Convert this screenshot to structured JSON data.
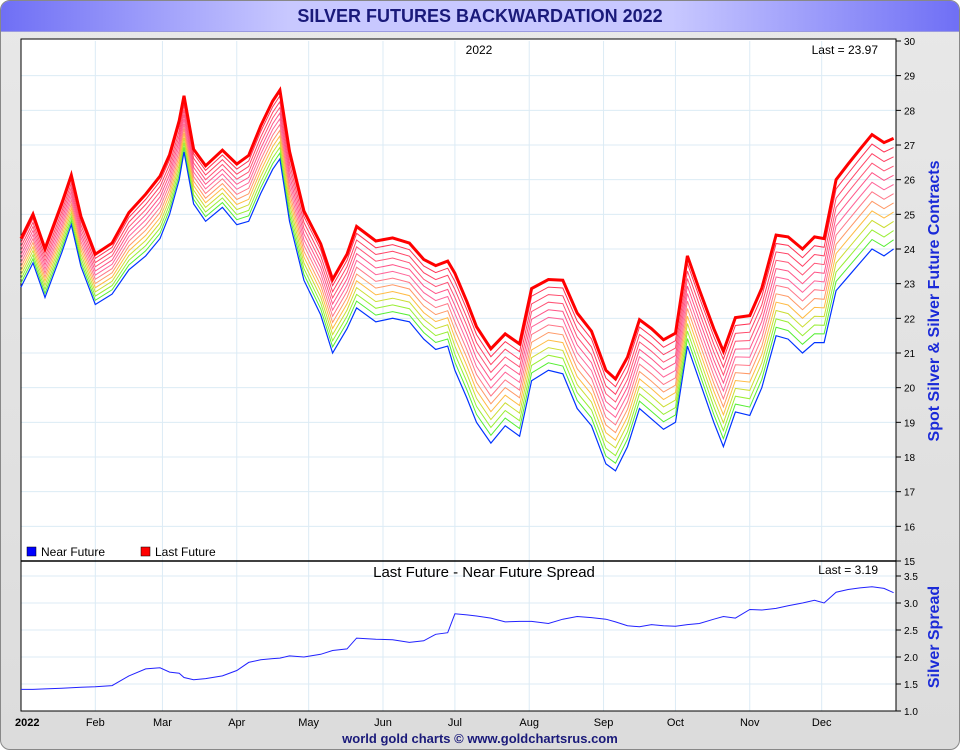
{
  "title": "SILVER FUTURES BACKWARDATION 2022",
  "footer": "world gold charts © www.goldchartsrus.com",
  "chart_data": [
    {
      "type": "line",
      "title": "2022",
      "last_label": "Last = 23.97",
      "ylabel": "Spot Silver & Silver Future Contracts",
      "ylim": [
        15,
        30
      ],
      "yticks": [
        "15",
        "16",
        "17",
        "18",
        "19",
        "20",
        "21",
        "22",
        "23",
        "24",
        "25",
        "26",
        "27",
        "28",
        "29",
        "30"
      ],
      "legend": [
        {
          "name": "Near Future",
          "color": "#0000ff"
        },
        {
          "name": "Last Future",
          "color": "#ff0000"
        }
      ],
      "legend_position": "bottom-left",
      "intermediate_contracts": 11,
      "x_day_of_year": [
        0,
        5,
        10,
        17,
        21,
        25,
        31,
        38,
        45,
        52,
        58,
        62,
        66,
        68,
        72,
        77,
        84,
        90,
        95,
        100,
        105,
        108,
        112,
        118,
        125,
        130,
        136,
        140,
        148,
        155,
        162,
        168,
        173,
        178,
        181,
        186,
        190,
        196,
        202,
        208,
        213,
        220,
        226,
        232,
        238,
        244,
        248,
        253,
        258,
        263,
        268,
        273,
        278,
        283,
        289,
        293,
        298,
        304,
        309,
        315,
        320,
        326,
        331,
        335,
        340,
        345,
        350,
        355,
        360,
        364
      ],
      "near_future": [
        22.9,
        23.6,
        22.6,
        23.9,
        24.7,
        23.5,
        22.4,
        22.7,
        23.4,
        23.8,
        24.3,
        25.0,
        26.0,
        26.8,
        25.3,
        24.8,
        25.2,
        24.7,
        24.8,
        25.6,
        26.3,
        26.6,
        24.8,
        23.1,
        22.1,
        21.0,
        21.7,
        22.3,
        21.9,
        22.0,
        21.9,
        21.4,
        21.1,
        21.2,
        20.5,
        19.7,
        19.0,
        18.4,
        18.9,
        18.6,
        20.2,
        20.5,
        20.4,
        19.4,
        18.9,
        17.8,
        17.6,
        18.3,
        19.4,
        19.1,
        18.8,
        19.0,
        21.2,
        20.2,
        19.0,
        18.3,
        19.3,
        19.2,
        20.0,
        21.5,
        21.4,
        21.0,
        21.3,
        21.3,
        22.8,
        23.2,
        23.6,
        24.0,
        23.8,
        24.0
      ]
    },
    {
      "type": "line",
      "title": "Last Future - Near Future Spread",
      "last_label": "Last = 3.19",
      "ylabel": "Silver Spread",
      "ylim": [
        1.0,
        3.5
      ],
      "yticks": [
        "1.0",
        "1.5",
        "2.0",
        "2.5",
        "3.0",
        "3.5"
      ],
      "xticks": [
        "2022",
        "Feb",
        "Mar",
        "Apr",
        "May",
        "Jun",
        "Jul",
        "Aug",
        "Sep",
        "Oct",
        "Nov",
        "Dec"
      ],
      "spread": [
        1.4,
        1.4,
        1.41,
        1.42,
        1.43,
        1.44,
        1.45,
        1.47,
        1.65,
        1.78,
        1.8,
        1.72,
        1.7,
        1.62,
        1.58,
        1.6,
        1.65,
        1.75,
        1.9,
        1.95,
        1.97,
        1.98,
        2.02,
        2.0,
        2.05,
        2.12,
        2.15,
        2.35,
        2.33,
        2.32,
        2.27,
        2.3,
        2.42,
        2.45,
        2.8,
        2.78,
        2.76,
        2.72,
        2.65,
        2.66,
        2.66,
        2.62,
        2.7,
        2.75,
        2.73,
        2.7,
        2.65,
        2.58,
        2.56,
        2.6,
        2.58,
        2.57,
        2.6,
        2.62,
        2.7,
        2.75,
        2.72,
        2.88,
        2.87,
        2.9,
        2.95,
        3.0,
        3.05,
        3.0,
        3.2,
        3.25,
        3.28,
        3.3,
        3.27,
        3.19
      ]
    }
  ]
}
